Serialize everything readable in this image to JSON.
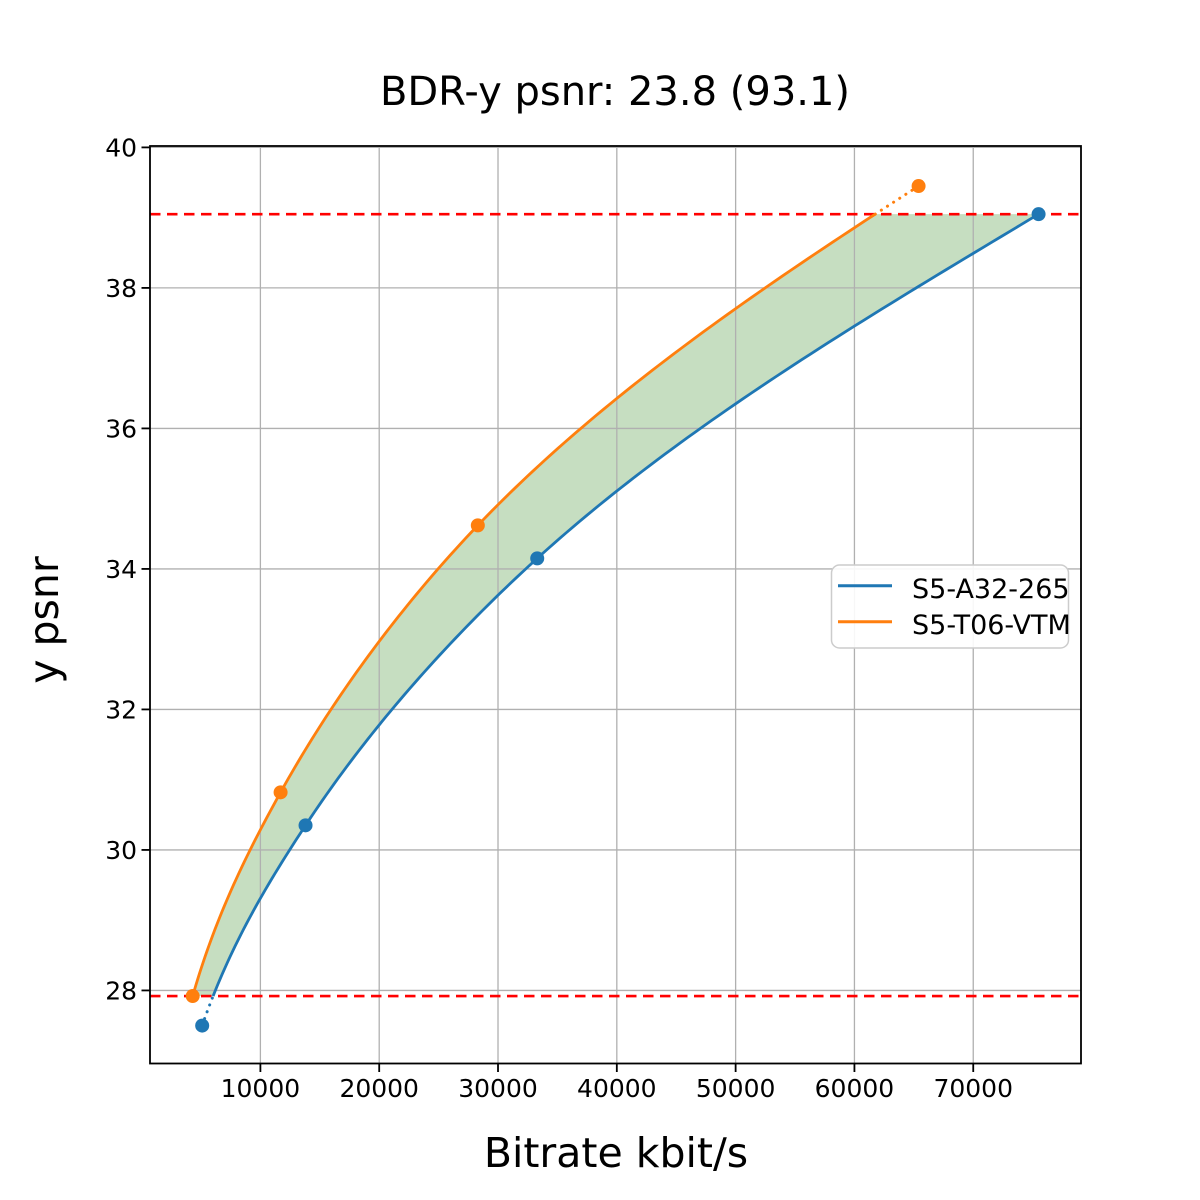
{
  "chart_data": {
    "type": "line",
    "title": "BDR-y psnr: 23.8 (93.1)",
    "xlabel": "Bitrate kbit/s",
    "ylabel": "y psnr",
    "xlim": [
      708,
      79070
    ],
    "ylim": [
      26.96,
      40.02
    ],
    "xticks": [
      10000,
      20000,
      30000,
      40000,
      50000,
      60000,
      70000
    ],
    "yticks": [
      28,
      30,
      32,
      34,
      36,
      38,
      40
    ],
    "grid": true,
    "grid_color": "#b0b0b0",
    "legend_position": "center-right",
    "series": [
      {
        "name": "S5-A32-265",
        "color": "#1f77b4",
        "marker": "circle",
        "points": [
          [
            5100,
            27.5
          ],
          [
            13800,
            30.35
          ],
          [
            33300,
            34.15
          ],
          [
            75500,
            39.05
          ]
        ]
      },
      {
        "name": "S5-T06-VTM",
        "color": "#ff7f0e",
        "marker": "circle",
        "points": [
          [
            4300,
            27.92
          ],
          [
            11700,
            30.82
          ],
          [
            28300,
            34.62
          ],
          [
            65400,
            39.45
          ]
        ]
      }
    ],
    "metrics": {
      "bd_rate": 23.8,
      "bd_rate_secondary": 93.1
    },
    "integration_range": {
      "psnr_low": 27.92,
      "psnr_high": 39.05,
      "line_color": "#ff0000",
      "line_style": "dashed"
    },
    "fill_between": {
      "between": [
        "S5-T06-VTM",
        "S5-A32-265"
      ],
      "color": "#c6dec1"
    }
  }
}
